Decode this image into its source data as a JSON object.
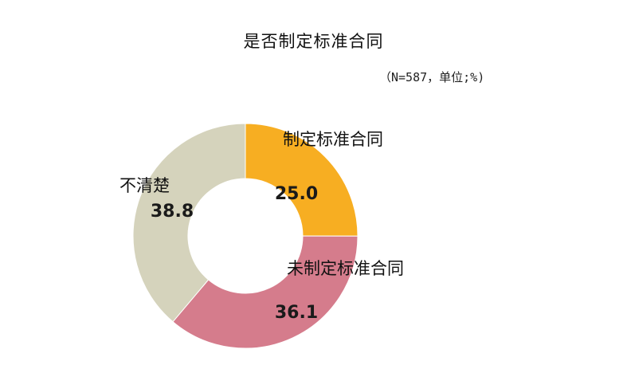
{
  "chart_data": {
    "type": "pie",
    "title": "是否制定标准合同",
    "subtitle": "（N=587，单位;%)",
    "categories": [
      "制定标准合同",
      "未制定标准合同",
      "不清楚"
    ],
    "values": [
      25.0,
      36.1,
      38.8
    ],
    "value_labels": [
      "25.0",
      "36.1",
      "38.8"
    ],
    "colors": [
      "#F7AE22",
      "#D57C8C",
      "#D5D3BC"
    ],
    "donut": true
  }
}
